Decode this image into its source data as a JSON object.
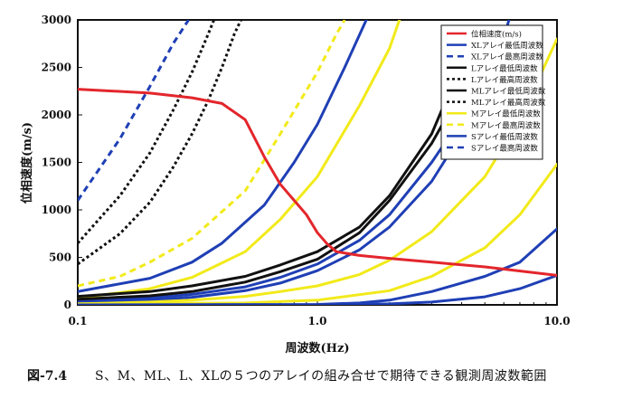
{
  "chart_data": {
    "type": "line",
    "xlabel": "周波数(Hz)",
    "ylabel": "位相速度(m/s)",
    "x_scale": "log",
    "xlim": [
      0.1,
      10.0
    ],
    "ylim": [
      0,
      3000
    ],
    "x_ticks": [
      "0.1",
      "1.0",
      "10.0"
    ],
    "y_ticks": [
      "0",
      "500",
      "1000",
      "1500",
      "2000",
      "2500",
      "3000"
    ],
    "legend_position": "top-right",
    "series": [
      {
        "name": "位相速度(m/s)",
        "color": "#e3262c",
        "dash": "solid",
        "points": [
          [
            0.1,
            2270
          ],
          [
            0.2,
            2230
          ],
          [
            0.3,
            2180
          ],
          [
            0.4,
            2120
          ],
          [
            0.5,
            1950
          ],
          [
            0.6,
            1560
          ],
          [
            0.7,
            1270
          ],
          [
            0.8,
            1100
          ],
          [
            0.9,
            950
          ],
          [
            1.0,
            760
          ],
          [
            1.1,
            640
          ],
          [
            1.2,
            560
          ],
          [
            1.5,
            520
          ],
          [
            2.0,
            490
          ],
          [
            3.0,
            450
          ],
          [
            5.0,
            400
          ],
          [
            10.0,
            310
          ]
        ]
      },
      {
        "name": "XLアレイ最低周波数",
        "color": "#1f3fb5",
        "dash": "solid",
        "points": [
          [
            0.1,
            0
          ],
          [
            1.0,
            0
          ],
          [
            2.0,
            10
          ],
          [
            3.0,
            30
          ],
          [
            5.0,
            85
          ],
          [
            7.0,
            170
          ],
          [
            10.0,
            310
          ]
        ]
      },
      {
        "name": "XLアレイ最高周波数",
        "color": "#1f3fb5",
        "dash": "dash",
        "points": [
          [
            0.1,
            1100
          ],
          [
            0.15,
            1750
          ],
          [
            0.2,
            2300
          ],
          [
            0.25,
            2750
          ],
          [
            0.29,
            3000
          ]
        ]
      },
      {
        "name": "Lアレイ最低周波数",
        "color": "#111111",
        "dash": "solid",
        "points": [
          [
            0.1,
            90
          ],
          [
            0.2,
            140
          ],
          [
            0.3,
            200
          ],
          [
            0.5,
            300
          ],
          [
            0.7,
            420
          ],
          [
            1.0,
            560
          ],
          [
            1.5,
            820
          ],
          [
            2.0,
            1150
          ],
          [
            3.0,
            1800
          ],
          [
            3.5,
            2200
          ]
        ]
      },
      {
        "name": "Lアレイ最高周波数",
        "color": "#111111",
        "dash": "dot",
        "points": [
          [
            0.1,
            430
          ],
          [
            0.15,
            750
          ],
          [
            0.2,
            1080
          ],
          [
            0.25,
            1450
          ],
          [
            0.3,
            1800
          ],
          [
            0.35,
            2150
          ],
          [
            0.4,
            2500
          ],
          [
            0.45,
            2850
          ],
          [
            0.48,
            3000
          ]
        ]
      },
      {
        "name": "MLアレイ最低周波数",
        "color": "#111111",
        "dash": "solid",
        "points": [
          [
            0.1,
            60
          ],
          [
            0.2,
            95
          ],
          [
            0.3,
            140
          ],
          [
            0.5,
            240
          ],
          [
            0.7,
            350
          ],
          [
            1.0,
            480
          ],
          [
            1.5,
            760
          ],
          [
            2.0,
            1100
          ],
          [
            3.0,
            1700
          ],
          [
            3.5,
            2000
          ]
        ]
      },
      {
        "name": "MLアレイ最高周波数",
        "color": "#111111",
        "dash": "dot",
        "points": [
          [
            0.1,
            650
          ],
          [
            0.15,
            1150
          ],
          [
            0.2,
            1600
          ],
          [
            0.25,
            2050
          ],
          [
            0.3,
            2450
          ],
          [
            0.35,
            2850
          ],
          [
            0.37,
            3000
          ]
        ]
      },
      {
        "name": "Mアレイ最低周波数",
        "color": "#f2ea1a",
        "dash": "solid",
        "points": [
          [
            0.1,
            10
          ],
          [
            0.5,
            20
          ],
          [
            1.0,
            50
          ],
          [
            2.0,
            150
          ],
          [
            3.0,
            300
          ],
          [
            5.0,
            600
          ],
          [
            7.0,
            950
          ],
          [
            10.0,
            1480
          ]
        ]
      },
      {
        "name": "Mアレイ最高周波数",
        "color": "#f2ea1a",
        "dash": "dash",
        "points": [
          [
            0.1,
            200
          ],
          [
            0.15,
            300
          ],
          [
            0.2,
            450
          ],
          [
            0.3,
            700
          ],
          [
            0.5,
            1200
          ],
          [
            0.7,
            1800
          ],
          [
            1.0,
            2450
          ],
          [
            1.2,
            2850
          ],
          [
            1.3,
            3000
          ]
        ]
      },
      {
        "name": "Sアレイ最低周波数",
        "color": "#1f3fb5",
        "dash": "solid",
        "points": [
          [
            0.1,
            0
          ],
          [
            1.0,
            5
          ],
          [
            1.5,
            20
          ],
          [
            2.0,
            50
          ],
          [
            3.0,
            140
          ],
          [
            5.0,
            300
          ],
          [
            7.0,
            450
          ],
          [
            10.0,
            800
          ]
        ]
      },
      {
        "name": "Sアレイ最高周波数",
        "color": "#1f3fb5",
        "dash": "dash",
        "points": []
      }
    ]
  },
  "extra_curves": [
    {
      "color": "#1f3fb5",
      "dash": "solid",
      "points": [
        [
          0.1,
          140
        ],
        [
          0.2,
          280
        ],
        [
          0.3,
          450
        ],
        [
          0.4,
          650
        ],
        [
          0.6,
          1050
        ],
        [
          0.8,
          1500
        ],
        [
          1.0,
          1900
        ],
        [
          1.3,
          2500
        ],
        [
          1.6,
          3000
        ]
      ]
    },
    {
      "color": "#f2ea1a",
      "dash": "solid",
      "points": [
        [
          0.1,
          70
        ],
        [
          0.2,
          170
        ],
        [
          0.3,
          290
        ],
        [
          0.5,
          560
        ],
        [
          0.7,
          900
        ],
        [
          1.0,
          1350
        ],
        [
          1.5,
          2100
        ],
        [
          2.0,
          2700
        ],
        [
          2.2,
          3000
        ]
      ]
    },
    {
      "color": "#1f3fb5",
      "dash": "solid",
      "points": [
        [
          0.1,
          40
        ],
        [
          0.2,
          70
        ],
        [
          0.3,
          110
        ],
        [
          0.5,
          190
        ],
        [
          0.7,
          290
        ],
        [
          1.0,
          430
        ],
        [
          1.5,
          680
        ],
        [
          2.0,
          950
        ],
        [
          3.0,
          1500
        ],
        [
          3.5,
          1750
        ],
        [
          4.0,
          2050
        ]
      ]
    },
    {
      "color": "#1f3fb5",
      "dash": "solid",
      "points": [
        [
          0.1,
          20
        ],
        [
          0.2,
          50
        ],
        [
          0.3,
          80
        ],
        [
          0.5,
          150
        ],
        [
          0.7,
          230
        ],
        [
          1.0,
          360
        ],
        [
          1.5,
          580
        ],
        [
          2.0,
          820
        ],
        [
          3.0,
          1300
        ],
        [
          4.0,
          1800
        ],
        [
          5.0,
          2300
        ],
        [
          6.0,
          2800
        ],
        [
          6.3,
          3000
        ]
      ]
    },
    {
      "color": "#f2ea1a",
      "dash": "solid",
      "points": [
        [
          0.1,
          10
        ],
        [
          0.2,
          30
        ],
        [
          0.3,
          50
        ],
        [
          0.5,
          90
        ],
        [
          0.7,
          140
        ],
        [
          1.0,
          200
        ],
        [
          1.5,
          320
        ],
        [
          2.0,
          470
        ],
        [
          3.0,
          770
        ],
        [
          5.0,
          1350
        ],
        [
          7.0,
          1950
        ],
        [
          10.0,
          2800
        ]
      ]
    }
  ],
  "caption": {
    "figure": "図-7.4",
    "text": "S、M、ML、L、XLの５つのアレイの組み合せで期待できる観測周波数範囲"
  }
}
